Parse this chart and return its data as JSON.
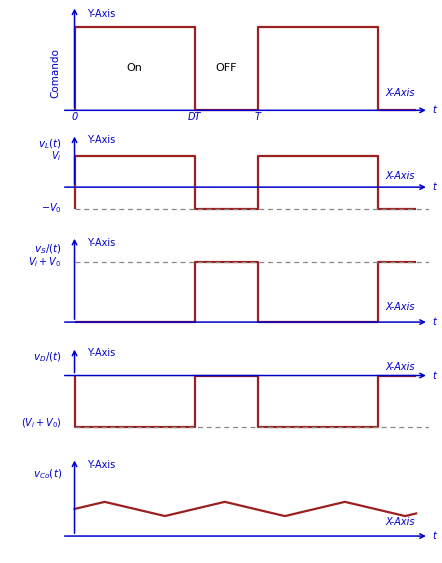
{
  "fig_width": 4.42,
  "fig_height": 5.63,
  "dpi": 100,
  "signal_color": "#9B2020",
  "axis_color": "#0000CC",
  "text_color": "#0000CC",
  "dashed_color": "#888888",
  "background": "#FFFFFF",
  "DT": 0.38,
  "T": 0.58,
  "T2": 0.96,
  "T_total": 1.0,
  "lw_signal": 1.6,
  "lw_axis": 1.1,
  "fontsize_label": 7,
  "fontsize_tick": 7,
  "fontsize_onoff": 8,
  "subplot_heights": [
    1.4,
    1.1,
    1.2,
    1.2,
    1.1
  ]
}
